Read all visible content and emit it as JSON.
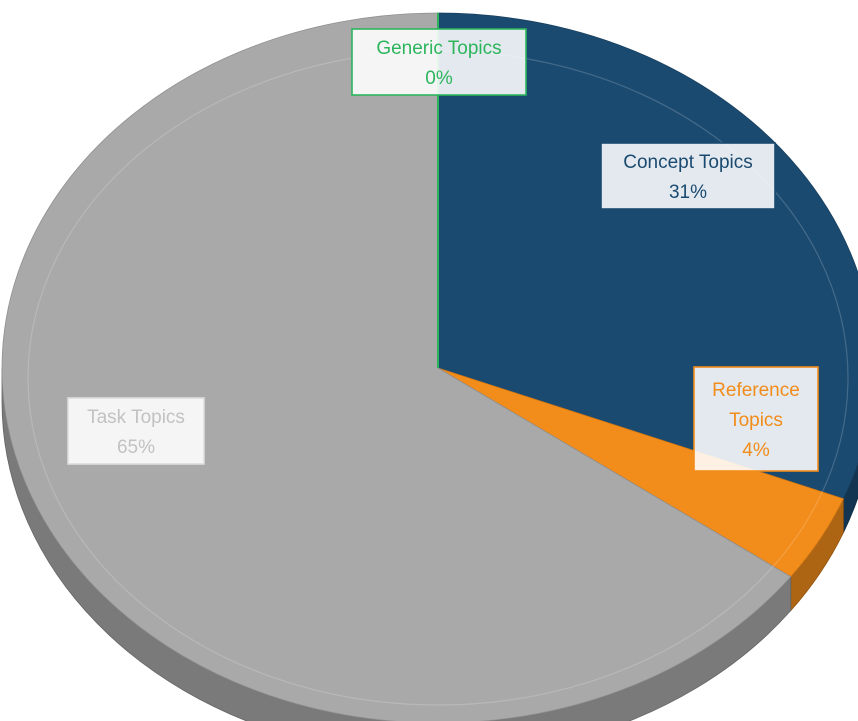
{
  "chart_data": {
    "type": "pie",
    "style": "3d",
    "slices": [
      {
        "name": "Concept Topics",
        "value": 31,
        "label": "31%",
        "color": "#1b4a70",
        "label_color": "#1b4a70",
        "label_border": "#1b4a70"
      },
      {
        "name": "Reference Topics",
        "value": 4,
        "label": "4%",
        "color": "#f28c1a",
        "label_color": "#f28c1a",
        "label_border": "#f28c1a"
      },
      {
        "name": "Task Topics",
        "value": 65,
        "label": "65%",
        "color": "#a9a9a9",
        "label_color": "#c2c2c2",
        "label_border": "#dcdcdc"
      },
      {
        "name": "Generic Topics",
        "value": 0,
        "label": "0%",
        "color": "#2db55d",
        "label_color": "#2db55d",
        "label_border": "#2db55d"
      }
    ]
  }
}
